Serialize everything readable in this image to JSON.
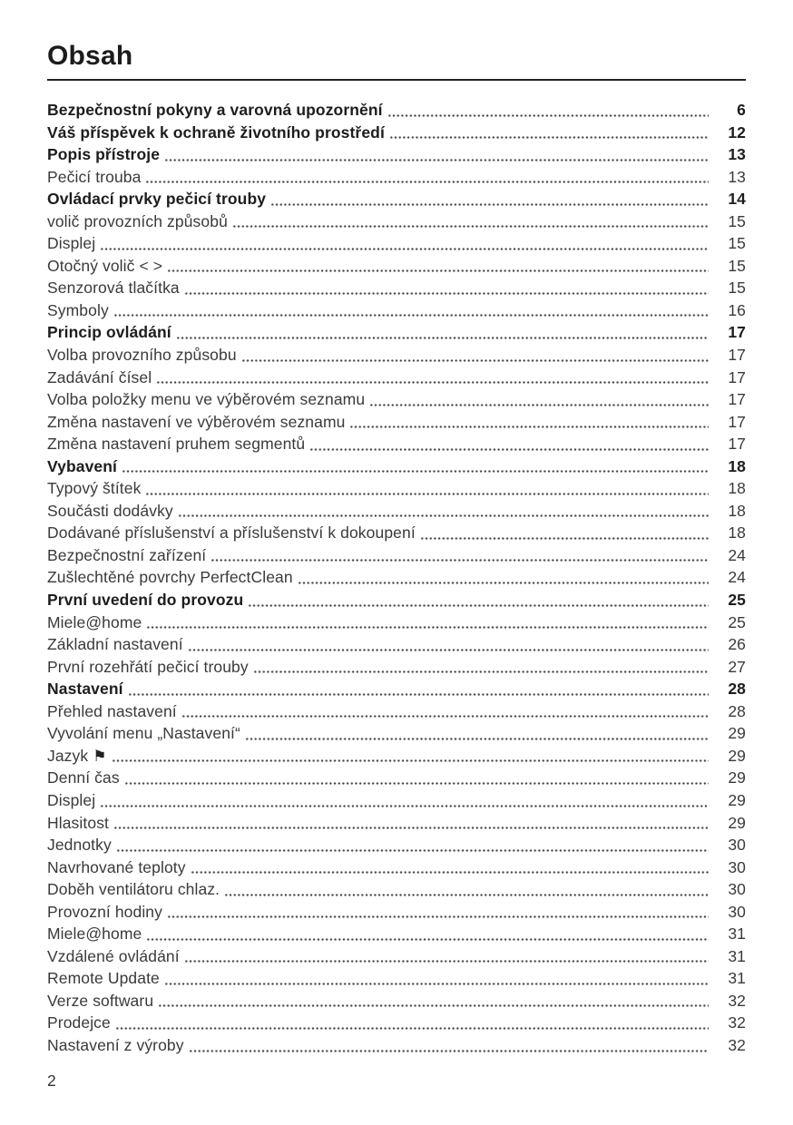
{
  "page": {
    "title": "Obsah",
    "footer_page_number": "2"
  },
  "icons": {
    "flag-icon": "⚑"
  },
  "toc": {
    "entries": [
      {
        "label": "Bezpečnostní pokyny a varovná upozornění",
        "page": "6",
        "bold": true
      },
      {
        "label": "Váš příspěvek k ochraně životního prostředí",
        "page": "12",
        "bold": true
      },
      {
        "label": "Popis přístroje",
        "page": "13",
        "bold": true
      },
      {
        "label": "Pečicí trouba",
        "page": "13",
        "bold": false
      },
      {
        "label": "Ovládací prvky pečicí trouby",
        "page": "14",
        "bold": true
      },
      {
        "label": "volič provozních způsobů",
        "page": "15",
        "bold": false
      },
      {
        "label": "Displej",
        "page": "15",
        "bold": false
      },
      {
        "label": "Otočný volič < >",
        "page": "15",
        "bold": false
      },
      {
        "label": "Senzorová tlačítka",
        "page": "15",
        "bold": false
      },
      {
        "label": "Symboly",
        "page": "16",
        "bold": false
      },
      {
        "label": "Princip ovládání",
        "page": "17",
        "bold": true
      },
      {
        "label": "Volba provozního způsobu",
        "page": "17",
        "bold": false
      },
      {
        "label": "Zadávání čísel",
        "page": "17",
        "bold": false
      },
      {
        "label": "Volba položky menu ve výběrovém seznamu",
        "page": "17",
        "bold": false
      },
      {
        "label": "Změna nastavení ve výběrovém seznamu",
        "page": "17",
        "bold": false
      },
      {
        "label": "Změna nastavení pruhem segmentů",
        "page": "17",
        "bold": false
      },
      {
        "label": "Vybavení",
        "page": "18",
        "bold": true
      },
      {
        "label": "Typový štítek",
        "page": "18",
        "bold": false
      },
      {
        "label": "Součásti dodávky",
        "page": "18",
        "bold": false
      },
      {
        "label": "Dodávané příslušenství a příslušenství k dokoupení",
        "page": "18",
        "bold": false
      },
      {
        "label": "Bezpečnostní zařízení",
        "page": "24",
        "bold": false
      },
      {
        "label": "Zušlechtěné povrchy PerfectClean",
        "page": "24",
        "bold": false
      },
      {
        "label": "První uvedení do provozu",
        "page": "25",
        "bold": true
      },
      {
        "label": "Miele@home",
        "page": "25",
        "bold": false
      },
      {
        "label": "Základní nastavení",
        "page": "26",
        "bold": false
      },
      {
        "label": "První rozehřátí pečicí trouby",
        "page": "27",
        "bold": false
      },
      {
        "label": "Nastavení",
        "page": "28",
        "bold": true
      },
      {
        "label": "Přehled nastavení",
        "page": "28",
        "bold": false
      },
      {
        "label": "Vyvolání menu „Nastavení“",
        "page": "29",
        "bold": false
      },
      {
        "label": "Jazyk",
        "page": "29",
        "bold": false,
        "icon": "flag-icon"
      },
      {
        "label": "Denní čas",
        "page": "29",
        "bold": false
      },
      {
        "label": "Displej",
        "page": "29",
        "bold": false
      },
      {
        "label": "Hlasitost",
        "page": "29",
        "bold": false
      },
      {
        "label": "Jednotky",
        "page": "30",
        "bold": false
      },
      {
        "label": "Navrhované teploty",
        "page": "30",
        "bold": false
      },
      {
        "label": "Doběh ventilátoru chlaz.",
        "page": "30",
        "bold": false
      },
      {
        "label": "Provozní hodiny",
        "page": "30",
        "bold": false
      },
      {
        "label": "Miele@home",
        "page": "31",
        "bold": false
      },
      {
        "label": "Vzdálené ovládání",
        "page": "31",
        "bold": false
      },
      {
        "label": "Remote Update",
        "page": "31",
        "bold": false
      },
      {
        "label": "Verze softwaru",
        "page": "32",
        "bold": false
      },
      {
        "label": "Prodejce",
        "page": "32",
        "bold": false
      },
      {
        "label": "Nastavení z výroby",
        "page": "32",
        "bold": false
      }
    ]
  }
}
